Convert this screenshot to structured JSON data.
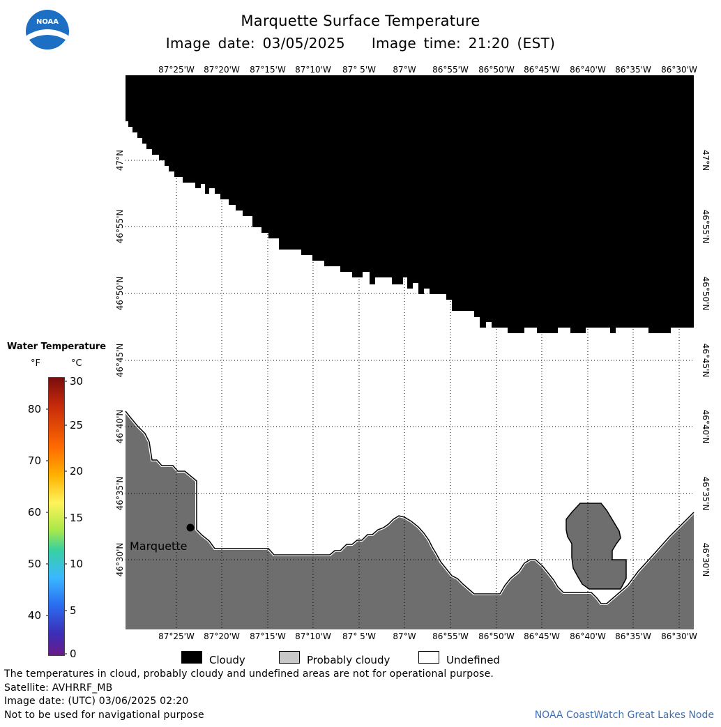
{
  "header": {
    "title": "Marquette Surface Temperature",
    "image_date": "Image date: 03/05/2025",
    "image_time": "Image time: 21:20 (EST)"
  },
  "logo": {
    "text": "NOAA"
  },
  "map": {
    "lon_labels": [
      "87°25'W",
      "87°20'W",
      "87°15'W",
      "87°10'W",
      "87° 5'W",
      "87°W",
      "86°55'W",
      "86°50'W",
      "86°45'W",
      "86°40'W",
      "86°35'W",
      "86°30'W"
    ],
    "lat_labels": [
      "47°N",
      "46°55'N",
      "46°50'N",
      "46°45'N",
      "46°40'N",
      "46°35'N",
      "46°30'N"
    ],
    "city_label": "Marquette",
    "colors": {
      "cloudy": "#000000",
      "probably_cloudy": "#6e6e6e",
      "undefined": "#ffffff"
    }
  },
  "legend": {
    "title": "Water Temperature",
    "unit_f": "°F",
    "unit_c": "°C",
    "f_ticks": [
      "80",
      "70",
      "60",
      "50",
      "40"
    ],
    "c_ticks": [
      "30",
      "25",
      "20",
      "15",
      "10",
      "5",
      "0"
    ]
  },
  "key": {
    "cloudy": "Cloudy",
    "probably_cloudy": "Probably cloudy",
    "undefined": "Undefined"
  },
  "footer": {
    "disclaimer": "The temperatures in cloud, probably cloudy and undefined areas are not for operational purpose.",
    "satellite": "Satellite: AVHRRF_MB",
    "utc_date": "Image date: (UTC) 03/06/2025  02:20",
    "nav_warning": "Not to be used for navigational purpose",
    "node": "NOAA CoastWatch Great Lakes Node"
  }
}
